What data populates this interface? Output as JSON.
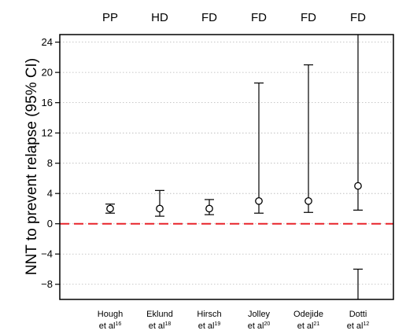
{
  "chart_data": {
    "type": "scatter",
    "ylabel": "NNT to prevent relapse (95% CI)",
    "ylim": [
      -10,
      25
    ],
    "yticks": [
      -8,
      -4,
      0,
      4,
      8,
      12,
      16,
      20,
      24
    ],
    "yticklabels": [
      "−8",
      "−4",
      "0",
      "4",
      "8",
      "12",
      "16",
      "20",
      "24"
    ],
    "grid": "horizontal dotted",
    "reference_line": {
      "y": 0,
      "color": "#e8232a",
      "style": "dashed"
    },
    "categories": [
      {
        "name_line1": "Hough",
        "name_line2": "et al",
        "ref": "16",
        "group": "PP",
        "nnt": 2,
        "ci_low": 1.4,
        "ci_high": 2.6,
        "ci_low2": null
      },
      {
        "name_line1": "Eklund",
        "name_line2": "et al",
        "ref": "18",
        "group": "HD",
        "nnt": 2,
        "ci_low": 1.0,
        "ci_high": 4.4,
        "ci_low2": null
      },
      {
        "name_line1": "Hirsch",
        "name_line2": "et al",
        "ref": "19",
        "group": "FD",
        "nnt": 2,
        "ci_low": 1.2,
        "ci_high": 3.2,
        "ci_low2": null
      },
      {
        "name_line1": "Jolley",
        "name_line2": "et al",
        "ref": "20",
        "group": "FD",
        "nnt": 3,
        "ci_low": 1.4,
        "ci_high": 18.6,
        "ci_low2": null
      },
      {
        "name_line1": "Odejide",
        "name_line2": "et al",
        "ref": "21",
        "group": "FD",
        "nnt": 3,
        "ci_low": 1.5,
        "ci_high": 21,
        "ci_low2": null
      },
      {
        "name_line1": "Dotti",
        "name_line2": "et al",
        "ref": "12",
        "group": "FD",
        "nnt": 5,
        "ci_low": 1.8,
        "ci_high": 25,
        "ci_low2": -6
      }
    ]
  }
}
